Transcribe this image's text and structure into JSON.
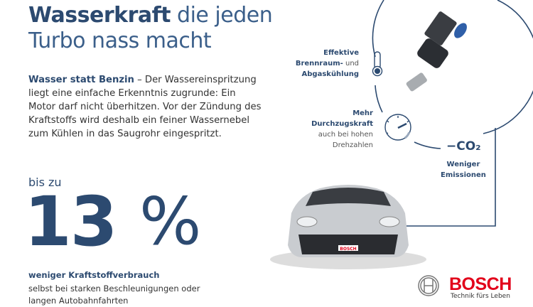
{
  "title": {
    "bold": "Wasserkraft",
    "rest_line1": " die jeden",
    "line2": "Turbo nass macht"
  },
  "intro": {
    "bold": "Wasser statt Benzin",
    "text": " – Der Wassereinspritzung liegt eine einfache Erkenntnis zugrunde: Ein Motor darf nicht überhitzen. Vor der Zündung des Kraftstoffs wird deshalb ein feiner Wassernebel zum Kühlen in das Saugrohr eingespritzt."
  },
  "stat": {
    "prefix": "bis zu",
    "value": "13",
    "unit": "%",
    "label": "weniger Kraftstoffverbrauch",
    "detail": "selbst bei starken Beschleunigungen oder langen Autobahnfahrten"
  },
  "benefits": {
    "cooling": {
      "l1": "Effektive",
      "l2b": "Brennraum-",
      "l2n": " und",
      "l3": "Abgaskühlung",
      "icon": "thermometer-icon"
    },
    "torque": {
      "l1": "Mehr",
      "l2": "Durchzugskraft",
      "l3": "auch bei hohen",
      "l4": "Drehzahlen",
      "icon": "speedometer-icon"
    },
    "co2": {
      "symbol": "−CO₂",
      "l1": "Weniger",
      "l2": "Emissionen"
    }
  },
  "car": {
    "plate": "BOSCH"
  },
  "brand": {
    "name": "BOSCH",
    "slogan": "Technik fürs Leben",
    "color": "#e2001a"
  },
  "colors": {
    "navy": "#2c4a70",
    "red": "#e2001a"
  }
}
